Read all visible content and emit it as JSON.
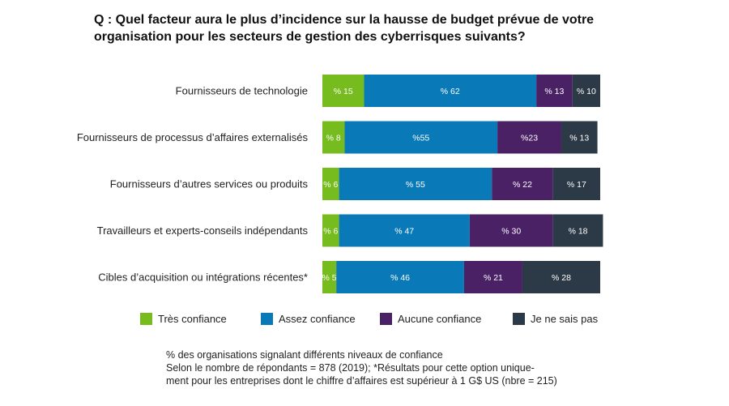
{
  "question": "Q : Quel facteur aura le plus d’incidence sur la hausse de budget prévue de votre organisation pour les secteurs de gestion des cyberrisques suivants?",
  "colors": {
    "tres_confiance": "#77bc1f",
    "assez_confiance": "#0a79b7",
    "aucune_confiance": "#4b2166",
    "ne_sais_pas": "#2c3a47"
  },
  "legend": [
    {
      "label": "Très confiance",
      "color": "#77bc1f"
    },
    {
      "label": "Assez confiance",
      "color": "#0a79b7"
    },
    {
      "label": "Aucune confiance",
      "color": "#4b2166"
    },
    {
      "label": "Je ne sais pas",
      "color": "#2c3a47"
    }
  ],
  "footnote": {
    "line1": "% des organisations signalant différents niveaux de confiance",
    "line2": "Selon le nombre de répondants = 878 (2019); *Résultats pour cette option unique-",
    "line3": "ment pour les entreprises dont le chiffre d’affaires est supérieur à 1 G$ US (nbre = 215)"
  },
  "chart_data": {
    "type": "bar",
    "orientation": "horizontal",
    "stacked": true,
    "categories": [
      "Fournisseurs de technologie",
      "Fournisseurs de processus d’affaires externalisés",
      "Fournisseurs d’autres services ou produits",
      "Travailleurs et experts-conseils indépendants",
      "Cibles d’acquisition ou intégrations récentes*"
    ],
    "series": [
      {
        "name": "Très confiance",
        "color": "#77bc1f",
        "values": [
          15,
          8,
          6,
          6,
          5
        ],
        "labels": [
          "% 15",
          "% 8",
          "% 6",
          "% 6",
          "% 5"
        ]
      },
      {
        "name": "Assez confiance",
        "color": "#0a79b7",
        "values": [
          62,
          55,
          55,
          47,
          46
        ],
        "labels": [
          "% 62",
          "%55",
          "% 55",
          "% 47",
          "% 46"
        ]
      },
      {
        "name": "Aucune confiance",
        "color": "#4b2166",
        "values": [
          13,
          23,
          22,
          30,
          21
        ],
        "labels": [
          "% 13",
          "%23",
          "% 22",
          "% 30",
          "% 21"
        ]
      },
      {
        "name": "Je ne sais pas",
        "color": "#2c3a47",
        "values": [
          10,
          13,
          17,
          18,
          28
        ],
        "labels": [
          "% 10",
          "% 13",
          "% 17",
          "% 18",
          "% 28"
        ]
      }
    ],
    "xlim": [
      0,
      100
    ],
    "legend_position": "bottom",
    "grid": false
  }
}
